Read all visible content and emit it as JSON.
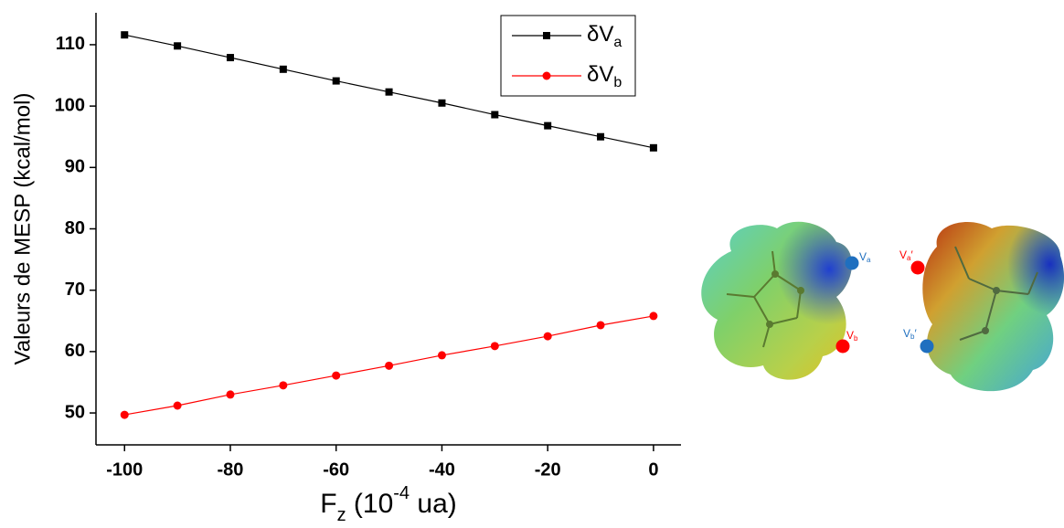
{
  "chart_data": {
    "type": "line",
    "x_label": "Fz (10-4 ua)",
    "y_label": "Valeurs de MESP (kcal/mol)",
    "x": [
      -100,
      -90,
      -80,
      -70,
      -60,
      -50,
      -40,
      -30,
      -20,
      -10,
      0
    ],
    "series": [
      {
        "name": "δVa",
        "color": "#000000",
        "marker": "square",
        "values": [
          111.6,
          109.8,
          107.9,
          106.0,
          104.1,
          102.3,
          100.5,
          98.6,
          96.8,
          95.0,
          93.2
        ]
      },
      {
        "name": "δVb",
        "color": "#ff0000",
        "marker": "circle",
        "values": [
          49.7,
          51.2,
          53.0,
          54.5,
          56.1,
          57.7,
          59.4,
          60.9,
          62.5,
          64.3,
          65.8
        ]
      }
    ],
    "xlim": [
      -105.4,
      5.2
    ],
    "ylim": [
      44.8,
      115.2
    ],
    "xticks": [
      -100,
      -80,
      -60,
      -40,
      -20,
      0
    ],
    "yticks": [
      50,
      60,
      70,
      80,
      90,
      100,
      110
    ],
    "legend": "upper right",
    "annotations": [
      "Va",
      "Vb",
      "Va′",
      "Vb′"
    ]
  }
}
